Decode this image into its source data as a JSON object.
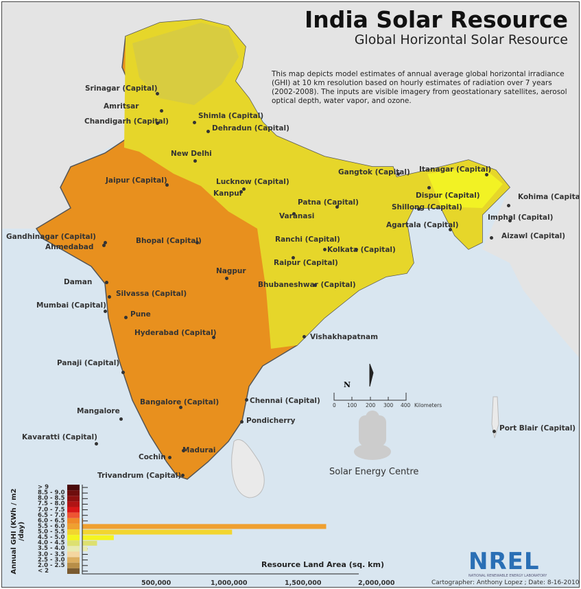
{
  "header": {
    "title": "India Solar Resource",
    "subtitle": "Global Horizontal Solar Resource"
  },
  "description": "This map depicts model estimates of annual average global horizontal irradiance (GHI) at 10 km resolution based on hourly estimates of radiation over 7 years (2002-2008).  The inputs are visible imagery from geostationary satellites, aerosol optical depth, water vapor, and ozone.",
  "colors": {
    "sea": "#d9e6f0",
    "land_outside": "#e4e4e4",
    "ghi_5_5_6_0": "#e8901e",
    "ghi_5_0_5_5": "#e6d62a",
    "ghi_4_5_5_0": "#f2f224"
  },
  "cities": [
    "Srinagar (Capital)",
    "Amritsar",
    "Chandigarh (Capital)",
    "Shimla (Capital)",
    "Dehradun (Capital)",
    "New Delhi",
    "Jaipur (Capital)",
    "Lucknow (Capital)",
    "Kanpur",
    "Gangtok (Capital)",
    "Itanagar (Capital)",
    "Dispur (Capital)",
    "Kohima (Capital)",
    "Patna (Capital)",
    "Shillong (Capital)",
    "Imphal (Capital)",
    "Varanasi",
    "Agartala (Capital)",
    "Aizawl (Capital)",
    "Gandhinagar (Capital)",
    "Ahmedabad",
    "Bhopal (Capital)",
    "Ranchi (Capital)",
    "Kolkata (Capital)",
    "Nagpur",
    "Raipur (Capital)",
    "Daman",
    "Bhubaneshwar (Capital)",
    "Silvassa (Capital)",
    "Mumbai (Capital)",
    "Pune",
    "Hyderabad (Capital)",
    "Vishakhapatnam",
    "Panaji (Capital)",
    "Bangalore (Capital)",
    "Chennai (Capital)",
    "Mangalore",
    "Pondicherry",
    "Kavaratti (Capital)",
    "Port Blair (Capital)",
    "Madurai",
    "Cochin",
    "Trivandrum (Capital)"
  ],
  "north_arrow": "N",
  "scale_bar": {
    "ticks": [
      "0",
      "100",
      "200",
      "300",
      "400"
    ],
    "unit": "Kilometers"
  },
  "logo_text": "Solar Energy Centre",
  "nrel": {
    "name": "NREL",
    "full": "NATIONAL RENEWABLE ENERGY LABORATORY"
  },
  "credit": "Cartographer: Anthony Lopez ; Date: 8-16-2010",
  "chart_data": {
    "type": "bar",
    "orientation": "horizontal",
    "ylabel": "Annual GHI (KWh / m2 /day)",
    "xlabel": "Resource Land Area (sq. km)",
    "xlim": [
      0,
      2000000
    ],
    "xticks": [
      "500,000",
      "1,000,000",
      "1,500,000",
      "2,000,000"
    ],
    "categories": [
      "> 9",
      "8.5 - 9.0",
      "8.0 - 8.5",
      "7.5 - 8.0",
      "7.0 - 7.5",
      "6.5 - 7.0",
      "6.0 - 6.5",
      "5.5 - 6.0",
      "5.0 - 5.5",
      "4.5 - 5.0",
      "4.0 - 4.5",
      "3.5 - 4.0",
      "3.0 - 3.5",
      "2.5 - 3.0",
      "2.0 - 2.5",
      "< 2"
    ],
    "colors": [
      "#4a0a0a",
      "#6e0d0d",
      "#8c1010",
      "#b01414",
      "#d81818",
      "#ee5533",
      "#ef8a28",
      "#efa030",
      "#f2d530",
      "#f4f420",
      "#dde070",
      "#e8eab0",
      "#f4d6a0",
      "#dcae60",
      "#b88e48",
      "#7a5a30"
    ],
    "values": [
      0,
      0,
      0,
      0,
      0,
      0,
      5000,
      1705000,
      1047000,
      220000,
      103000,
      37000,
      0,
      0,
      0,
      0
    ]
  }
}
